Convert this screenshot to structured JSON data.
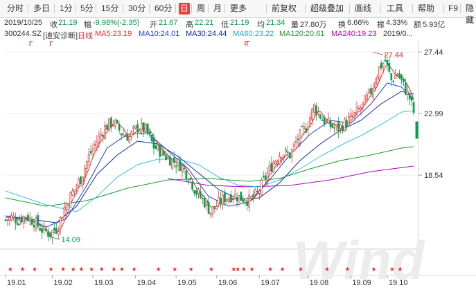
{
  "toolbar": {
    "periods": [
      "分时",
      "多日",
      "1分",
      "5分",
      "15分",
      "30分",
      "60分",
      "日",
      "周",
      "月",
      "更多"
    ],
    "active_period": "日",
    "tools": [
      "前复权",
      "超级叠加",
      "画线",
      "工具",
      "帮助",
      "F9",
      "隐藏"
    ]
  },
  "quote": {
    "date": "2019/10/25",
    "close_label": "收",
    "close": "21.19",
    "change_label": "幅",
    "change": "-9.98%(-2.35)",
    "open_label": "开",
    "open": "21.67",
    "high_label": "高",
    "high": "22.21",
    "low_label": "低",
    "low": "21.19",
    "avg_label": "均",
    "avg": "21.34",
    "volume_label": "量",
    "volume": "27.80万",
    "turnover_label": "换",
    "turnover": "6.66%",
    "amplitude_label": "振",
    "amplitude": "4.33%",
    "amount_label": "额",
    "amount": "5.93亿"
  },
  "ma_line": {
    "code": "300244.SZ",
    "name": "[迪安诊断]",
    "period": "日线",
    "ma5": "MA5:23.19",
    "ma10": "MA10:24.01",
    "ma30": "MA30:24.44",
    "ma60": "MA60:23.22",
    "ma120": "MA120:20.61",
    "ma240": "MA240:19.23",
    "right_date": "2019/0..."
  },
  "colors": {
    "up": "#e03030",
    "down": "#00a050",
    "ma5": "#e03030",
    "ma10": "#1e3fd6",
    "ma30": "#0a2aa8",
    "ma60": "#33c2e0",
    "ma120": "#1a9a2a",
    "ma240": "#b000c0"
  },
  "chart_data": {
    "type": "candlestick",
    "y_ticks": [
      "27.44",
      "22.99",
      "18.54"
    ],
    "y_range": [
      13.3,
      28.3
    ],
    "x_labels": [
      "19.01",
      "19.02",
      "19.03",
      "19.04",
      "19.05",
      "19.06",
      "19.07",
      "19.08",
      "19.09",
      "19.10"
    ],
    "annotations": [
      {
        "text": "27.44",
        "kind": "high"
      },
      {
        "text": "14.09",
        "kind": "low"
      }
    ],
    "close_path": [
      [
        0,
        15.3
      ],
      [
        3,
        15.5
      ],
      [
        6,
        15.3
      ],
      [
        10,
        15.6
      ],
      [
        14,
        15.2
      ],
      [
        18,
        14.6
      ],
      [
        22,
        14.3
      ],
      [
        26,
        14.9
      ],
      [
        29,
        16.2
      ],
      [
        33,
        17.3
      ],
      [
        37,
        18.3
      ],
      [
        41,
        19.9
      ],
      [
        45,
        21.0
      ],
      [
        49,
        22.0
      ],
      [
        53,
        22.4
      ],
      [
        57,
        21.6
      ],
      [
        61,
        21.3
      ],
      [
        65,
        22.0
      ],
      [
        69,
        21.8
      ],
      [
        73,
        20.6
      ],
      [
        76,
        20.3
      ],
      [
        79,
        19.9
      ],
      [
        82,
        19.6
      ],
      [
        86,
        19.3
      ],
      [
        90,
        18.5
      ],
      [
        94,
        17.3
      ],
      [
        98,
        16.6
      ],
      [
        101,
        15.9
      ],
      [
        104,
        16.4
      ],
      [
        108,
        16.9
      ],
      [
        112,
        17.1
      ],
      [
        116,
        16.9
      ],
      [
        120,
        16.7
      ],
      [
        124,
        17.2
      ],
      [
        128,
        18.4
      ],
      [
        132,
        19.5
      ],
      [
        136,
        20.2
      ],
      [
        140,
        20.0
      ],
      [
        144,
        21.2
      ],
      [
        148,
        22.0
      ],
      [
        152,
        23.5
      ],
      [
        156,
        22.6
      ],
      [
        160,
        22.1
      ],
      [
        164,
        21.9
      ],
      [
        168,
        22.4
      ],
      [
        172,
        22.9
      ],
      [
        176,
        23.6
      ],
      [
        180,
        24.6
      ],
      [
        184,
        26.3
      ],
      [
        187,
        26.8
      ],
      [
        190,
        25.4
      ],
      [
        193,
        25.9
      ],
      [
        196,
        25.0
      ],
      [
        199,
        24.1
      ],
      [
        201,
        23.1
      ]
    ],
    "ma10_path": [
      [
        0,
        15.5
      ],
      [
        10,
        15.4
      ],
      [
        20,
        14.8
      ],
      [
        30,
        15.4
      ],
      [
        40,
        17.8
      ],
      [
        50,
        20.5
      ],
      [
        60,
        21.5
      ],
      [
        70,
        21.6
      ],
      [
        80,
        20.3
      ],
      [
        90,
        19.0
      ],
      [
        100,
        17.0
      ],
      [
        110,
        16.3
      ],
      [
        120,
        16.6
      ],
      [
        130,
        18.2
      ],
      [
        140,
        20.0
      ],
      [
        150,
        21.5
      ],
      [
        160,
        22.5
      ],
      [
        170,
        22.3
      ],
      [
        180,
        23.7
      ],
      [
        188,
        25.2
      ],
      [
        195,
        24.9
      ],
      [
        201,
        24.0
      ]
    ],
    "ma30_path": [
      [
        0,
        15.6
      ],
      [
        15,
        15.3
      ],
      [
        25,
        15.1
      ],
      [
        35,
        16.3
      ],
      [
        45,
        18.6
      ],
      [
        55,
        20.0
      ],
      [
        65,
        21.0
      ],
      [
        75,
        20.8
      ],
      [
        85,
        19.9
      ],
      [
        95,
        18.7
      ],
      [
        105,
        17.5
      ],
      [
        115,
        16.8
      ],
      [
        125,
        16.9
      ],
      [
        135,
        18.0
      ],
      [
        145,
        19.6
      ],
      [
        155,
        20.8
      ],
      [
        165,
        21.8
      ],
      [
        175,
        22.5
      ],
      [
        185,
        23.7
      ],
      [
        195,
        24.6
      ],
      [
        201,
        24.4
      ]
    ],
    "ma60_path": [
      [
        0,
        17.4
      ],
      [
        20,
        16.4
      ],
      [
        35,
        15.9
      ],
      [
        45,
        17.0
      ],
      [
        55,
        18.4
      ],
      [
        65,
        19.3
      ],
      [
        75,
        19.7
      ],
      [
        85,
        19.7
      ],
      [
        95,
        19.3
      ],
      [
        105,
        18.4
      ],
      [
        115,
        17.8
      ],
      [
        125,
        17.7
      ],
      [
        135,
        18.2
      ],
      [
        145,
        19.0
      ],
      [
        155,
        19.9
      ],
      [
        165,
        20.7
      ],
      [
        175,
        21.4
      ],
      [
        185,
        22.2
      ],
      [
        195,
        23.1
      ],
      [
        201,
        23.2
      ]
    ],
    "ma120_path": [
      [
        0,
        16.9
      ],
      [
        20,
        16.3
      ],
      [
        40,
        16.7
      ],
      [
        60,
        17.6
      ],
      [
        80,
        18.2
      ],
      [
        100,
        18.3
      ],
      [
        120,
        18.1
      ],
      [
        135,
        18.3
      ],
      [
        150,
        19.0
      ],
      [
        165,
        19.6
      ],
      [
        180,
        20.0
      ],
      [
        195,
        20.5
      ],
      [
        201,
        20.6
      ]
    ],
    "ma240_path": [
      [
        80,
        18.3
      ],
      [
        100,
        17.8
      ],
      [
        120,
        17.7
      ],
      [
        140,
        17.8
      ],
      [
        160,
        18.2
      ],
      [
        180,
        18.8
      ],
      [
        201,
        19.2
      ]
    ]
  }
}
